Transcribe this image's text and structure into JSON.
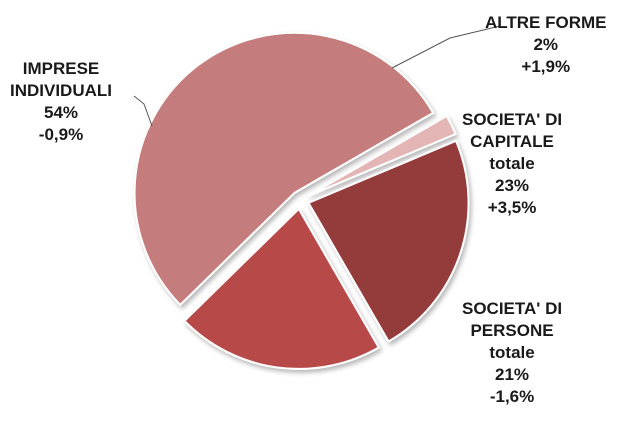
{
  "chart_data": {
    "type": "pie",
    "title": "",
    "slices": [
      {
        "name": "altre-forme",
        "lines": [
          "ALTRE FORME"
        ],
        "percent_label": "2%",
        "change_label": "+1,9%",
        "value": 2,
        "color": "#e3b5b5"
      },
      {
        "name": "societa-di-capitale",
        "lines": [
          "SOCIETA' DI",
          "CAPITALE",
          "totale"
        ],
        "percent_label": "23%",
        "change_label": "+3,5%",
        "value": 23,
        "color": "#943a3a"
      },
      {
        "name": "societa-di-persone",
        "lines": [
          "SOCIETA' DI",
          "PERSONE",
          "totale"
        ],
        "percent_label": "21%",
        "change_label": "-1,6%",
        "value": 21,
        "color": "#b84a4a"
      },
      {
        "name": "imprese-individuali",
        "lines": [
          "IMPRESE",
          "INDIVIDUALI"
        ],
        "percent_label": "54%",
        "change_label": "-0,9%",
        "value": 54,
        "color": "#c57c7c"
      }
    ]
  }
}
